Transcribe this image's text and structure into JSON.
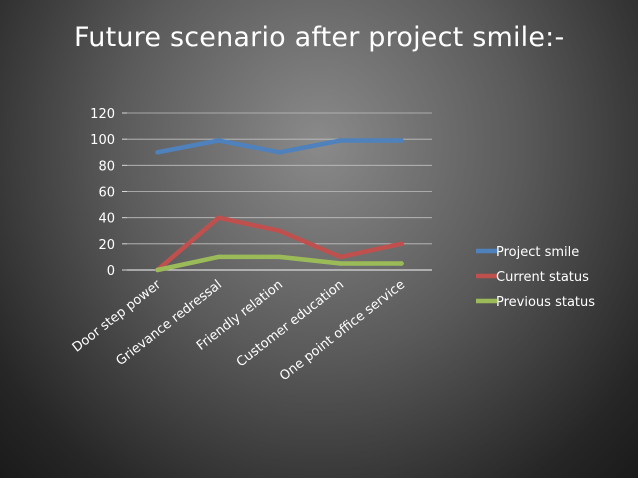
{
  "slide": {
    "title": "Future scenario after project smile:-"
  },
  "chart_data": {
    "type": "line",
    "title": "Future scenario after project smile:-",
    "categories": [
      "Door step power",
      "Grievance redressal",
      "Friendly relation",
      "Customer education",
      "One point office service"
    ],
    "series": [
      {
        "name": "Project smile",
        "values": [
          90,
          99,
          90,
          99,
          99
        ],
        "color": "#4f81bd"
      },
      {
        "name": "Current status",
        "values": [
          0,
          40,
          30,
          10,
          20
        ],
        "color": "#c0504d"
      },
      {
        "name": "Previous status",
        "values": [
          0,
          10,
          10,
          5,
          5
        ],
        "color": "#9bbb59"
      }
    ],
    "yticks": [
      0,
      20,
      40,
      60,
      80,
      100,
      120
    ],
    "ylim": [
      0,
      120
    ],
    "legend": "right",
    "grid": true,
    "xlabel": "",
    "ylabel": ""
  }
}
